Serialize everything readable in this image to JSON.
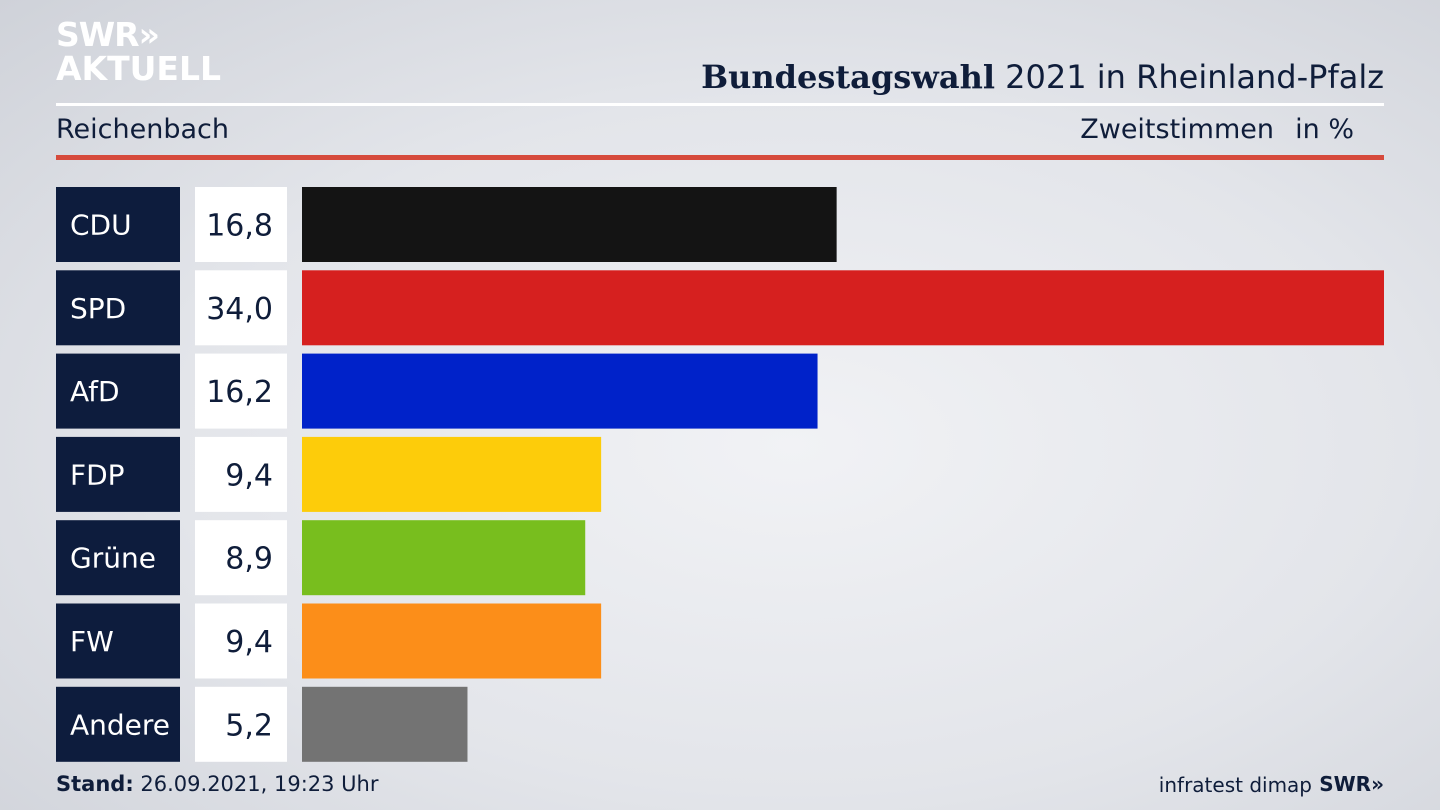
{
  "header": {
    "logo_line1": "SWR»",
    "logo_line2": "AKTUELL",
    "title_bold": "Bundestagswahl",
    "title_rest": " 2021 in Rheinland-Pfalz",
    "subtitle": "Reichenbach",
    "measure": "Zweitstimmen",
    "unit": "in %"
  },
  "footer": {
    "stand_label": "Stand:",
    "stand_value": " 26.09.2021, 19:23 Uhr",
    "source": "infratest dimap",
    "brand": "SWR»"
  },
  "chart_data": {
    "type": "bar",
    "orientation": "horizontal",
    "categories": [
      "CDU",
      "SPD",
      "AfD",
      "FDP",
      "Grüne",
      "FW",
      "Andere"
    ],
    "values": [
      16.8,
      34.0,
      16.2,
      9.4,
      8.9,
      9.4,
      5.2
    ],
    "value_labels": [
      "16,8",
      "34,0",
      "16,2",
      "9,4",
      "8,9",
      "9,4",
      "5,2"
    ],
    "colors": [
      "#141414",
      "#d6201f",
      "#0022c9",
      "#fdcc0a",
      "#78be1e",
      "#fc8e19",
      "#737373"
    ],
    "xlim": [
      0,
      34.0
    ],
    "label_bg": "#0d1c3d",
    "value_bg": "#ffffff"
  }
}
